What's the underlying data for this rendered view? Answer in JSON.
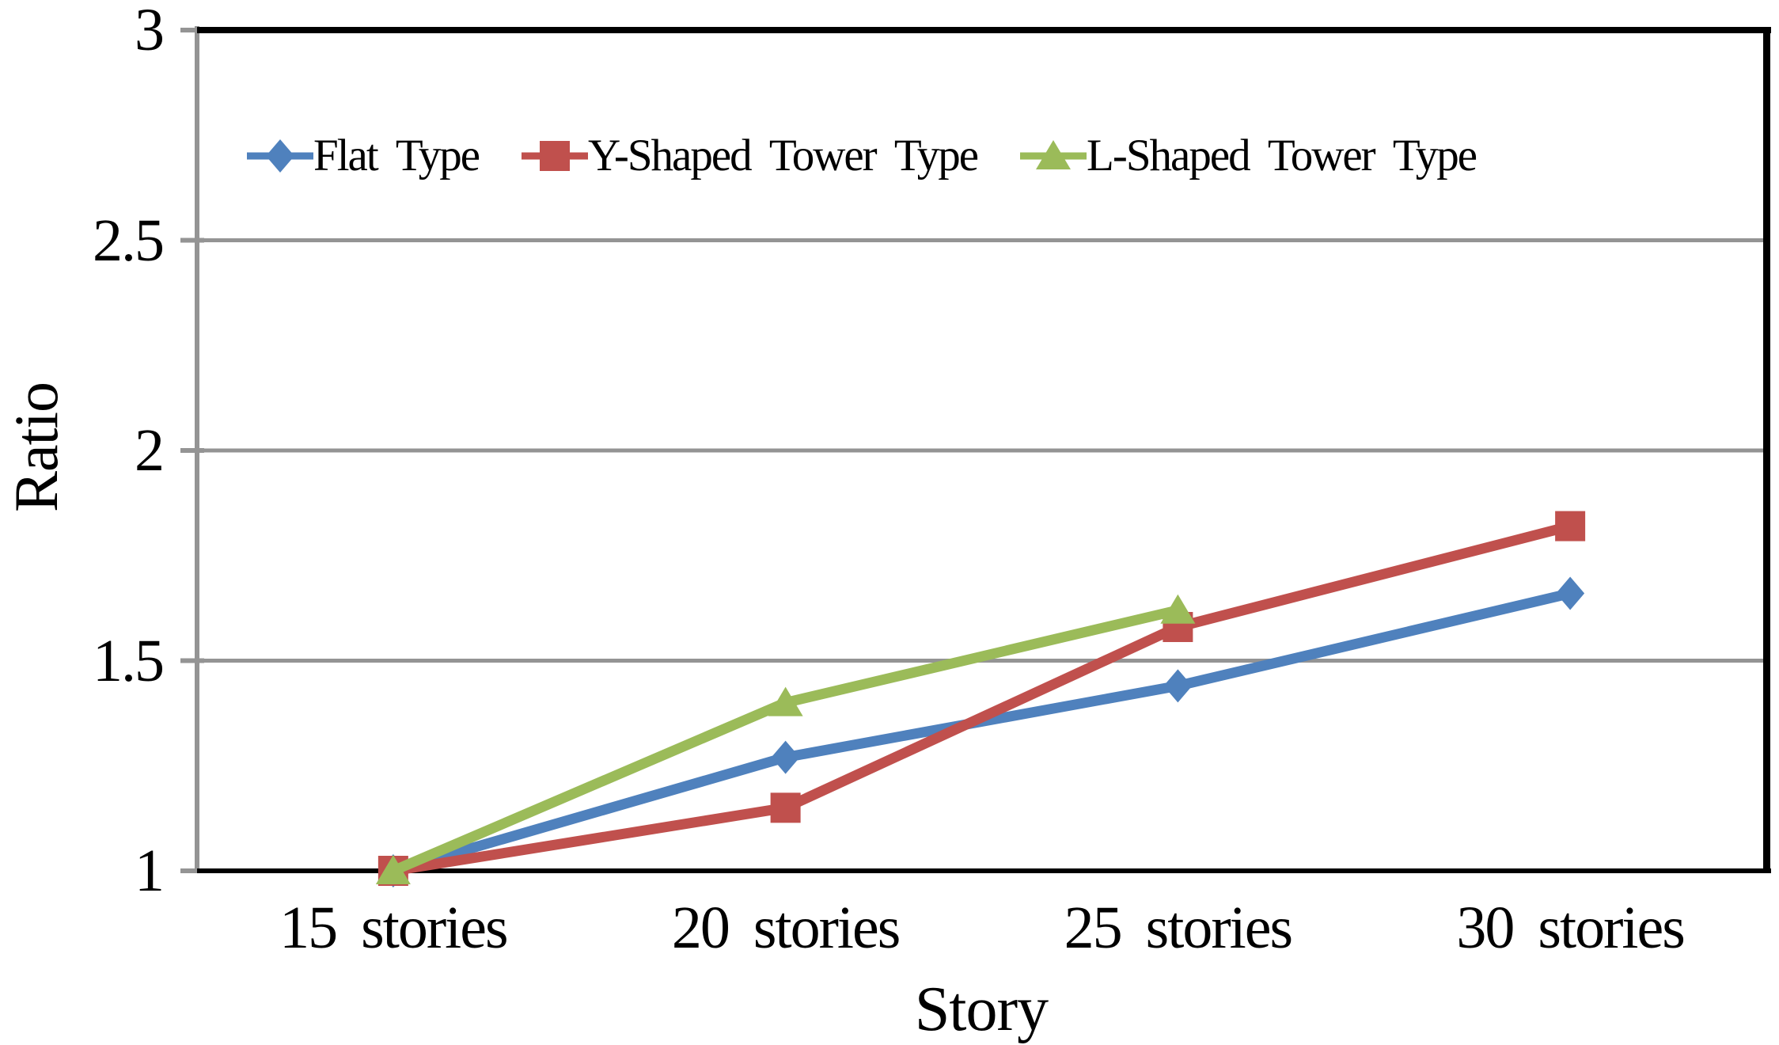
{
  "chart_data": {
    "type": "line",
    "title": "",
    "xlabel": "Story",
    "ylabel": "Ratio",
    "categories": [
      "15 stories",
      "20 stories",
      "25 stories",
      "30 stories"
    ],
    "series": [
      {
        "name": "Flat Type",
        "color": "#4F81BD",
        "marker": "diamond",
        "values": [
          1.0,
          1.27,
          1.44,
          1.66
        ]
      },
      {
        "name": "Y-Shaped Tower Type",
        "color": "#C0504D",
        "marker": "square",
        "values": [
          1.0,
          1.15,
          1.58,
          1.82
        ]
      },
      {
        "name": "L-Shaped Tower Type",
        "color": "#9BBB59",
        "marker": "triangle",
        "values": [
          1.0,
          1.4,
          1.62,
          null
        ]
      }
    ],
    "yticks": [
      {
        "label": "3",
        "value": 3
      },
      {
        "label": "2.5",
        "value": 2.5
      },
      {
        "label": "2",
        "value": 2
      },
      {
        "label": "1.5",
        "value": 1.5
      },
      {
        "label": "1",
        "value": 1
      }
    ],
    "ylim": [
      1,
      3
    ],
    "grid": true,
    "legend_position": "top-inside",
    "colors": {
      "grid": "#949494",
      "y_axis_line": "#949494",
      "axis": "#000000",
      "text": "#000000",
      "background": "#ffffff"
    }
  }
}
